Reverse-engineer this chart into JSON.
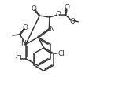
{
  "background_color": "#ffffff",
  "line_color": "#3a3a3a",
  "line_width": 1.1,
  "font_size": 6.5,
  "figsize": [
    1.46,
    1.35
  ],
  "dpi": 100,
  "xlim": [
    0,
    10
  ],
  "ylim": [
    0,
    10
  ]
}
